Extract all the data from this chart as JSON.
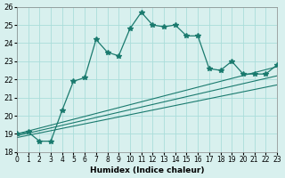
{
  "xlabel": "Humidex (Indice chaleur)",
  "xlim": [
    0,
    23
  ],
  "ylim": [
    18,
    26
  ],
  "yticks": [
    18,
    19,
    20,
    21,
    22,
    23,
    24,
    25,
    26
  ],
  "xticks": [
    0,
    1,
    2,
    3,
    4,
    5,
    6,
    7,
    8,
    9,
    10,
    11,
    12,
    13,
    14,
    15,
    16,
    17,
    18,
    19,
    20,
    21,
    22,
    23
  ],
  "bg_color": "#d8f0ee",
  "grid_color": "#aaddda",
  "line_color": "#1a7a6e",
  "main_line_x": [
    0,
    1,
    2,
    3,
    4,
    5,
    6,
    7,
    8,
    9,
    10,
    11,
    12,
    13,
    14,
    15,
    16,
    17,
    18,
    19,
    20,
    21,
    22,
    23
  ],
  "main_line_y": [
    19.0,
    19.1,
    18.6,
    18.6,
    20.3,
    21.9,
    22.1,
    24.2,
    23.5,
    23.3,
    24.8,
    25.7,
    25.0,
    24.9,
    25.0,
    24.4,
    24.4,
    22.6,
    22.5,
    23.0,
    22.3,
    22.3,
    22.3,
    22.8
  ],
  "line2_x": [
    0,
    23
  ],
  "line2_y": [
    19.0,
    22.7
  ],
  "line3_x": [
    0,
    23
  ],
  "line3_y": [
    18.9,
    22.2
  ],
  "line4_x": [
    0,
    23
  ],
  "line4_y": [
    18.8,
    21.7
  ]
}
